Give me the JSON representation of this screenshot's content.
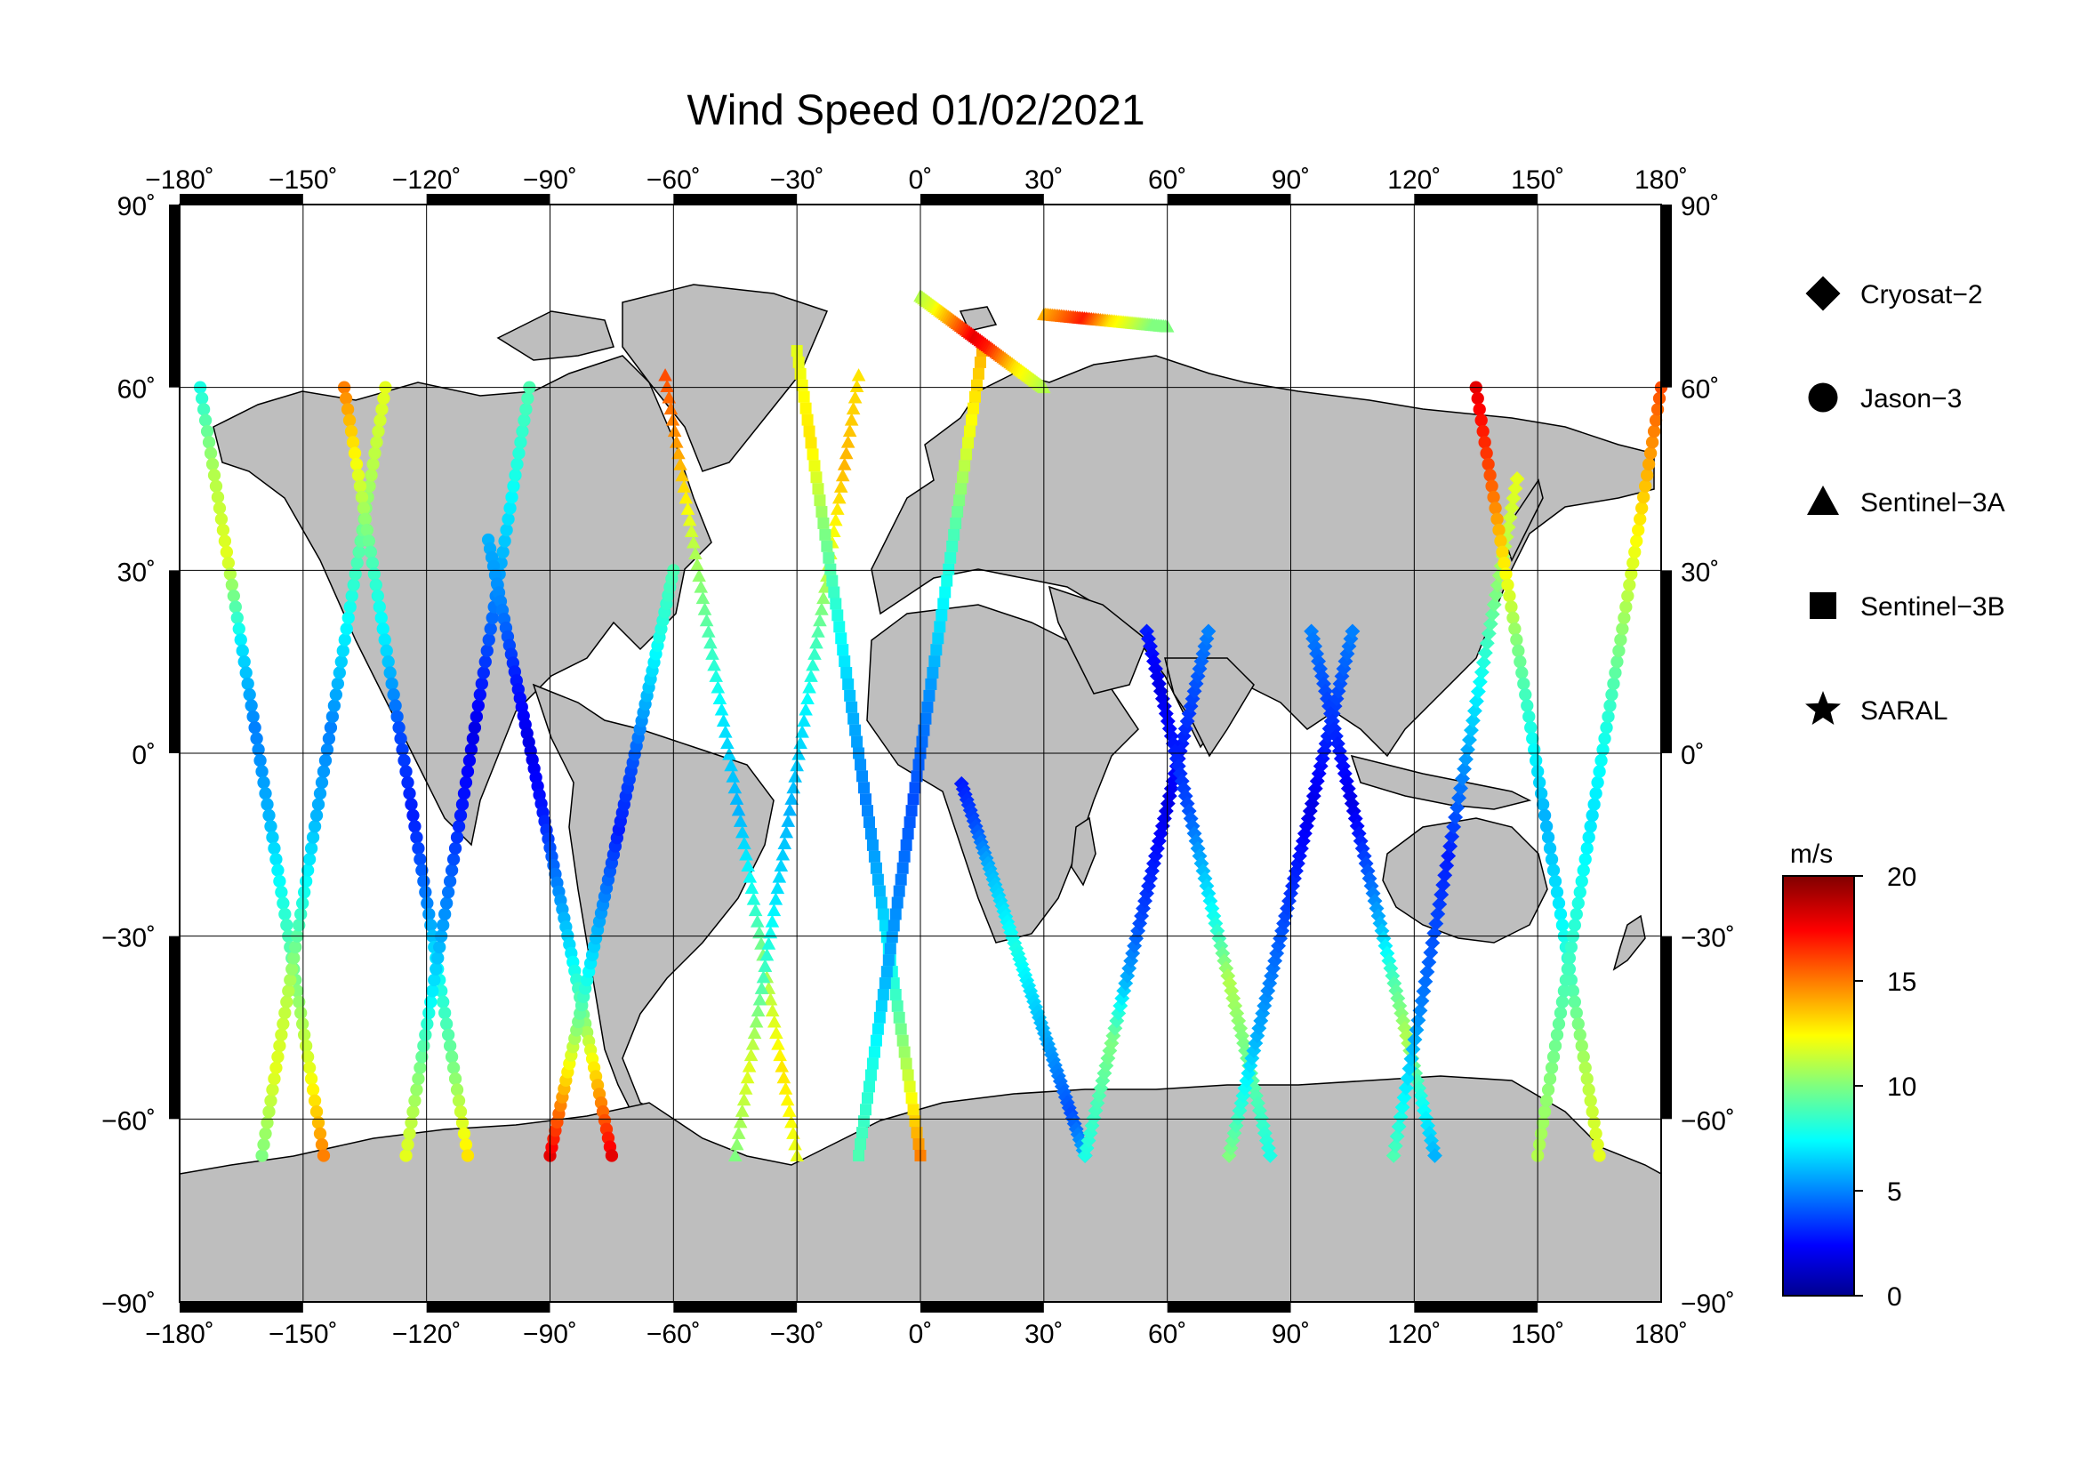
{
  "title": "Wind Speed 01/02/2021",
  "axes": {
    "lon_ticks": [
      {
        "value": -180,
        "label": "−180˚"
      },
      {
        "value": -150,
        "label": "−150˚"
      },
      {
        "value": -120,
        "label": "−120˚"
      },
      {
        "value": -90,
        "label": "−90˚"
      },
      {
        "value": -60,
        "label": "−60˚"
      },
      {
        "value": -30,
        "label": "−30˚"
      },
      {
        "value": 0,
        "label": "0˚"
      },
      {
        "value": 30,
        "label": "30˚"
      },
      {
        "value": 60,
        "label": "60˚"
      },
      {
        "value": 90,
        "label": "90˚"
      },
      {
        "value": 120,
        "label": "120˚"
      },
      {
        "value": 150,
        "label": "150˚"
      },
      {
        "value": 180,
        "label": "180˚"
      }
    ],
    "lat_ticks": [
      {
        "value": 90,
        "label": "90˚"
      },
      {
        "value": 60,
        "label": "60˚"
      },
      {
        "value": 30,
        "label": "30˚"
      },
      {
        "value": 0,
        "label": "0˚"
      },
      {
        "value": -30,
        "label": "−30˚"
      },
      {
        "value": -60,
        "label": "−60˚"
      },
      {
        "value": -90,
        "label": "−90˚"
      }
    ]
  },
  "legend": [
    {
      "name": "Cryosat−2",
      "marker": "diamond"
    },
    {
      "name": "Jason−3",
      "marker": "circle"
    },
    {
      "name": "Sentinel−3A",
      "marker": "triangle"
    },
    {
      "name": "Sentinel−3B",
      "marker": "square"
    },
    {
      "name": "SARAL",
      "marker": "star"
    }
  ],
  "colorbar": {
    "unit": "m/s",
    "min": 0,
    "max": 20,
    "ticks": [
      {
        "value": 20,
        "label": "20"
      },
      {
        "value": 15,
        "label": "15"
      },
      {
        "value": 10,
        "label": "10"
      },
      {
        "value": 5,
        "label": "5"
      },
      {
        "value": 0,
        "label": "0"
      }
    ],
    "colormap": "jet"
  },
  "colors": {
    "land": "#bebebe",
    "ocean": "#ffffff",
    "grid": "#000000"
  },
  "chart_data": {
    "type": "scatter",
    "projection": "equirectangular",
    "xlim": [
      -180,
      180
    ],
    "ylim": [
      -90,
      90
    ],
    "grid": true,
    "legend_position": "right",
    "tracks": [
      {
        "satellite": "Jason−3",
        "lon0": -175,
        "lon1": -145,
        "lat0": 60,
        "lat1": -66,
        "wind": [
          8,
          11,
          12,
          7,
          5,
          6,
          8,
          10,
          12,
          15
        ]
      },
      {
        "satellite": "Jason−3",
        "lon0": -160,
        "lon1": -130,
        "lat0": -66,
        "lat1": 60,
        "wind": [
          10,
          12,
          11,
          8,
          6,
          5,
          7,
          9,
          11,
          12
        ]
      },
      {
        "satellite": "Jason−3",
        "lon0": -140,
        "lon1": -110,
        "lat0": 60,
        "lat1": -66,
        "wind": [
          15,
          12,
          9,
          7,
          4,
          3,
          5,
          8,
          10,
          13
        ]
      },
      {
        "satellite": "Jason−3",
        "lon0": -125,
        "lon1": -95,
        "lat0": -66,
        "lat1": 60,
        "wind": [
          12,
          10,
          7,
          5,
          3,
          2,
          4,
          6,
          8,
          9
        ]
      },
      {
        "satellite": "Jason−3",
        "lon0": -105,
        "lon1": -75,
        "lat0": 35,
        "lat1": -66,
        "wind": [
          6,
          5,
          3,
          2,
          3,
          5,
          7,
          10,
          14,
          18
        ]
      },
      {
        "satellite": "Jason−3",
        "lon0": -90,
        "lon1": -60,
        "lat0": -66,
        "lat1": 30,
        "wind": [
          18,
          14,
          10,
          7,
          5,
          3,
          4,
          6,
          8,
          9
        ]
      },
      {
        "satellite": "Sentinel−3A",
        "lon0": -62,
        "lon1": -30,
        "lat0": 62,
        "lat1": -66,
        "wind": [
          16,
          14,
          11,
          9,
          7,
          6,
          8,
          11,
          13,
          12
        ]
      },
      {
        "satellite": "Sentinel−3A",
        "lon0": -45,
        "lon1": -15,
        "lat0": -66,
        "lat1": 62,
        "wind": [
          10,
          12,
          9,
          7,
          6,
          7,
          9,
          12,
          14,
          13
        ]
      },
      {
        "satellite": "Sentinel−3B",
        "lon0": -30,
        "lon1": 0,
        "lat0": 66,
        "lat1": -66,
        "wind": [
          12,
          13,
          10,
          8,
          6,
          5,
          6,
          8,
          11,
          15
        ]
      },
      {
        "satellite": "Sentinel−3B",
        "lon0": -15,
        "lon1": 15,
        "lat0": -66,
        "lat1": 66,
        "wind": [
          9,
          8,
          6,
          5,
          4,
          5,
          7,
          9,
          12,
          14
        ]
      },
      {
        "satellite": "Cryosat−2",
        "lon0": 10,
        "lon1": 40,
        "lat0": -5,
        "lat1": -66,
        "wind": [
          3,
          4,
          6,
          7,
          8,
          7,
          6,
          5,
          4,
          6
        ]
      },
      {
        "satellite": "Cryosat−2",
        "lon0": 40,
        "lon1": 70,
        "lat0": -66,
        "lat1": 20,
        "wind": [
          8,
          9,
          10,
          6,
          4,
          3,
          2,
          3,
          4,
          5
        ]
      },
      {
        "satellite": "Cryosat−2",
        "lon0": 55,
        "lon1": 85,
        "lat0": 20,
        "lat1": -66,
        "wind": [
          3,
          2,
          3,
          4,
          6,
          8,
          11,
          10,
          9,
          8
        ]
      },
      {
        "satellite": "Cryosat−2",
        "lon0": 75,
        "lon1": 105,
        "lat0": -66,
        "lat1": 20,
        "wind": [
          10,
          8,
          6,
          5,
          4,
          3,
          2,
          3,
          4,
          5
        ]
      },
      {
        "satellite": "Cryosat−2",
        "lon0": 95,
        "lon1": 125,
        "lat0": 20,
        "lat1": -66,
        "wind": [
          5,
          4,
          3,
          2,
          4,
          6,
          9,
          11,
          8,
          6
        ]
      },
      {
        "satellite": "Cryosat−2",
        "lon0": 115,
        "lon1": 145,
        "lat0": -66,
        "lat1": 45,
        "wind": [
          9,
          7,
          5,
          4,
          3,
          5,
          7,
          9,
          11,
          12
        ]
      },
      {
        "satellite": "Jason−3",
        "lon0": 135,
        "lon1": 165,
        "lat0": 60,
        "lat1": -66,
        "wind": [
          18,
          16,
          13,
          10,
          8,
          6,
          7,
          9,
          11,
          12
        ]
      },
      {
        "satellite": "Jason−3",
        "lon0": 150,
        "lon1": 180,
        "lat0": -66,
        "lat1": 60,
        "wind": [
          11,
          10,
          9,
          8,
          7,
          8,
          10,
          12,
          14,
          16
        ]
      },
      {
        "satellite": "Sentinel−3A",
        "lon0": 0,
        "lon1": 30,
        "lat0": 75,
        "lat1": 60,
        "wind": [
          11,
          12,
          14,
          16,
          18,
          17,
          15,
          13,
          12,
          11
        ]
      },
      {
        "satellite": "Sentinel−3A",
        "lon0": 30,
        "lon1": 60,
        "lat0": 72,
        "lat1": 70,
        "wind": [
          14,
          15,
          16,
          17,
          15,
          13,
          12,
          11,
          10,
          10
        ]
      }
    ]
  }
}
